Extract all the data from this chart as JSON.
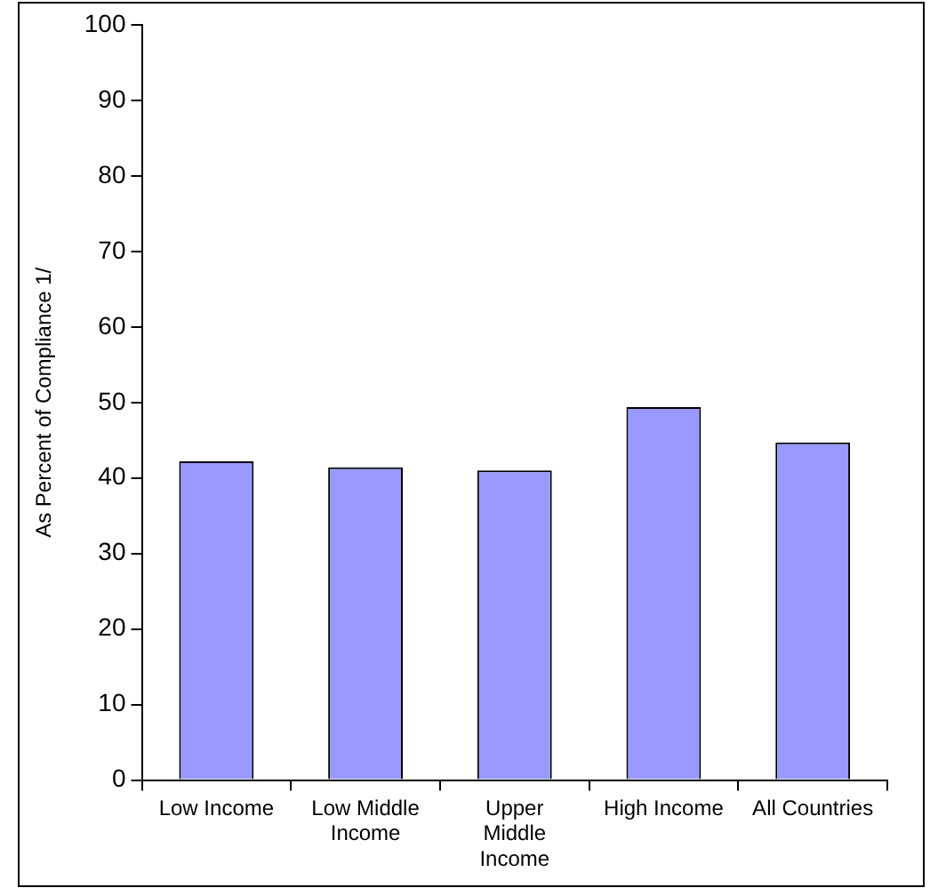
{
  "chart_data": {
    "type": "bar",
    "ylabel": "As Percent of Compliance 1/",
    "categories": [
      "Low Income",
      "Low Middle Income",
      "Upper Middle Income",
      "High Income",
      "All Countries"
    ],
    "values": [
      42.2,
      41.4,
      41,
      49.4,
      44.7
    ],
    "color": "#9999ff",
    "ylim": [
      0,
      100
    ],
    "yticks": [
      0,
      10,
      20,
      30,
      40,
      50,
      60,
      70,
      80,
      90,
      100
    ],
    "grid": false,
    "legend": false
  }
}
